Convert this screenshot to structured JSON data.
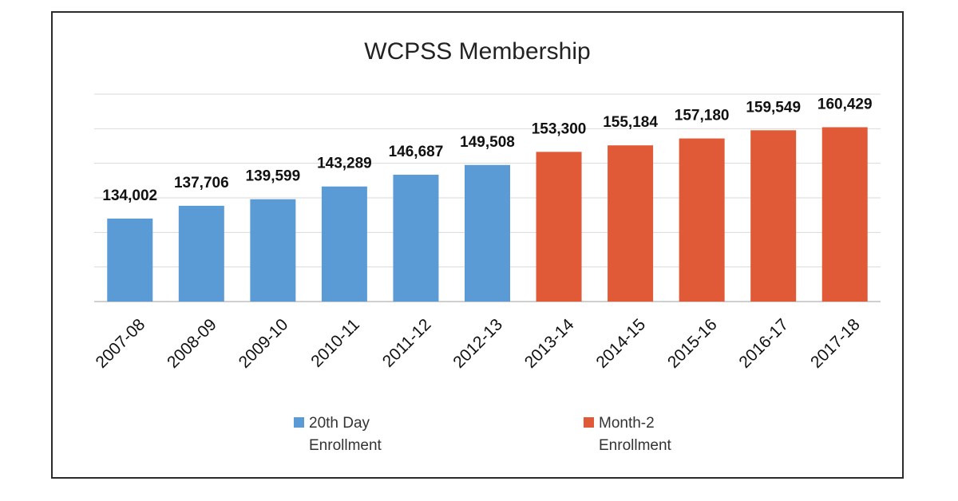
{
  "chart_data": {
    "type": "bar",
    "title": "WCPSS Membership",
    "categories": [
      "2007-08",
      "2008-09",
      "2009-10",
      "2010-11",
      "2011-12",
      "2012-13",
      "2013-14",
      "2014-15",
      "2015-16",
      "2016-17",
      "2017-18"
    ],
    "values": [
      134002,
      137706,
      139599,
      143289,
      146687,
      149508,
      153300,
      155184,
      157180,
      159549,
      160429
    ],
    "value_labels": [
      "134,002",
      "137,706",
      "139,599",
      "143,289",
      "146,687",
      "149,508",
      "153,300",
      "155,184",
      "157,180",
      "159,549",
      "160,429"
    ],
    "series": [
      {
        "name": "20th Day Enrollment",
        "legend_lines": [
          "20th Day",
          "Enrollment"
        ],
        "color": "#5b9bd5",
        "range": [
          0,
          5
        ]
      },
      {
        "name": "Month-2 Enrollment",
        "legend_lines": [
          "Month-2",
          "Enrollment"
        ],
        "color": "#e05a37",
        "range": [
          6,
          10
        ]
      }
    ],
    "ylim": [
      110000,
      170000
    ],
    "grid": true,
    "legend_position": "bottom",
    "xlabel": "",
    "ylabel": ""
  }
}
